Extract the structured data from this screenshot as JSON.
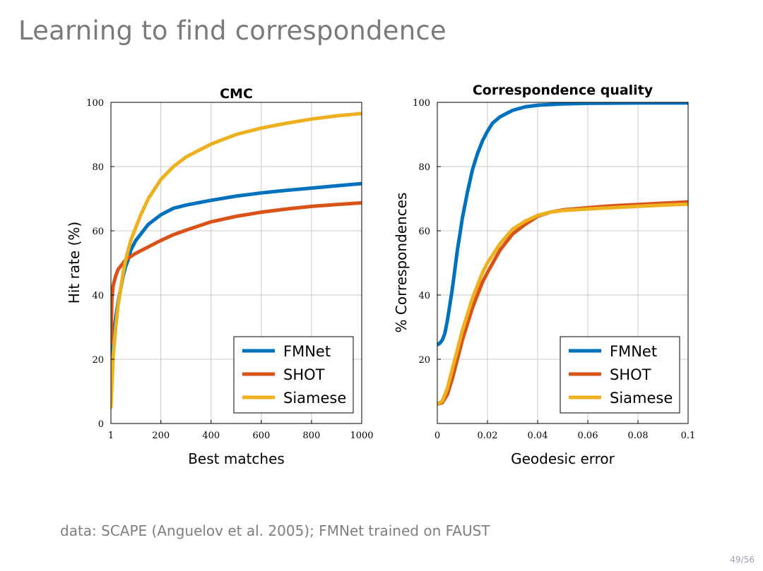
{
  "slide": {
    "title": "Learning to find correspondence",
    "footnote": "data: SCAPE (Anguelov et al. 2005); FMNet trained on FAUST",
    "page_number": "49/56"
  },
  "colors": {
    "FMNet": "#0072bd",
    "SHOT": "#d95319",
    "Siamese": "#edb120",
    "grid": "#c8c8c8",
    "slide_title": "#7a7a7a"
  },
  "chart_data": [
    {
      "type": "line",
      "title": "CMC",
      "xlabel": "Best matches",
      "ylabel": "Hit rate (%)",
      "xlim": [
        1,
        1000
      ],
      "ylim": [
        0,
        100
      ],
      "xticks": [
        1,
        200,
        400,
        600,
        800,
        1000
      ],
      "xtick_labels": [
        "1",
        "200",
        "400",
        "600",
        "800",
        "1000"
      ],
      "yticks": [
        0,
        20,
        40,
        60,
        80,
        100
      ],
      "ytick_labels": [
        "0",
        "20",
        "40",
        "60",
        "80",
        "100"
      ],
      "grid": true,
      "legend_position": "bottom-right",
      "series": [
        {
          "name": "FMNet",
          "x": [
            1,
            10,
            20,
            30,
            40,
            50,
            60,
            70,
            80,
            100,
            120,
            150,
            200,
            250,
            300,
            400,
            500,
            600,
            700,
            800,
            900,
            1000
          ],
          "y": [
            19,
            27,
            33,
            38,
            42,
            46,
            49,
            51,
            54,
            57,
            59,
            62,
            65,
            67,
            68,
            69.5,
            70.8,
            71.8,
            72.6,
            73.3,
            74.0,
            74.7
          ]
        },
        {
          "name": "SHOT",
          "x": [
            1,
            5,
            10,
            20,
            30,
            40,
            50,
            60,
            80,
            100,
            150,
            200,
            250,
            300,
            400,
            500,
            600,
            700,
            800,
            900,
            1000
          ],
          "y": [
            25,
            39,
            43,
            46,
            48,
            49,
            50,
            51,
            52,
            53,
            55,
            57,
            58.8,
            60.2,
            62.8,
            64.5,
            65.8,
            66.8,
            67.6,
            68.2,
            68.7
          ]
        },
        {
          "name": "Siamese",
          "x": [
            1,
            10,
            20,
            30,
            40,
            50,
            60,
            70,
            80,
            100,
            120,
            150,
            200,
            250,
            300,
            400,
            500,
            600,
            700,
            800,
            900,
            1000
          ],
          "y": [
            5,
            21,
            30,
            37,
            42,
            47,
            51,
            54,
            57,
            61,
            65,
            70,
            76,
            80,
            83,
            87,
            90,
            92,
            93.5,
            94.8,
            95.8,
            96.5
          ]
        }
      ]
    },
    {
      "type": "line",
      "title": "Correspondence quality",
      "xlabel": "Geodesic error",
      "ylabel": "% Correspondences",
      "xlim": [
        0,
        0.1
      ],
      "ylim": [
        0,
        100
      ],
      "xticks": [
        0,
        0.02,
        0.04,
        0.06,
        0.08,
        0.1
      ],
      "xtick_labels": [
        "0",
        "0.02",
        "0.04",
        "0.06",
        "0.08",
        "0.1"
      ],
      "yticks": [
        20,
        40,
        60,
        80,
        100
      ],
      "ytick_labels": [
        "20",
        "40",
        "60",
        "80",
        "100"
      ],
      "grid": true,
      "legend_position": "bottom-right",
      "series": [
        {
          "name": "FMNet",
          "x": [
            0,
            0.001,
            0.002,
            0.003,
            0.004,
            0.005,
            0.006,
            0.007,
            0.008,
            0.009,
            0.01,
            0.012,
            0.014,
            0.016,
            0.018,
            0.02,
            0.022,
            0.025,
            0.03,
            0.035,
            0.04,
            0.05,
            0.06,
            0.08,
            0.1
          ],
          "y": [
            24.5,
            25,
            26,
            28,
            32,
            37,
            42,
            48,
            54,
            59,
            64,
            72,
            79,
            84,
            88,
            91,
            93.5,
            95.5,
            97.5,
            98.6,
            99.1,
            99.5,
            99.7,
            99.8,
            99.8
          ]
        },
        {
          "name": "SHOT",
          "x": [
            0,
            0.002,
            0.004,
            0.006,
            0.008,
            0.01,
            0.012,
            0.014,
            0.016,
            0.018,
            0.02,
            0.025,
            0.03,
            0.035,
            0.04,
            0.045,
            0.05,
            0.06,
            0.07,
            0.08,
            0.09,
            0.1
          ],
          "y": [
            6,
            6.5,
            9,
            14,
            20,
            26,
            31,
            36,
            40,
            44,
            47,
            54,
            59,
            62,
            64.5,
            65.8,
            66.5,
            67.2,
            67.8,
            68.2,
            68.6,
            69
          ]
        },
        {
          "name": "Siamese",
          "x": [
            0,
            0.002,
            0.004,
            0.006,
            0.008,
            0.01,
            0.012,
            0.014,
            0.016,
            0.018,
            0.02,
            0.025,
            0.03,
            0.035,
            0.04,
            0.045,
            0.05,
            0.06,
            0.07,
            0.08,
            0.09,
            0.1
          ],
          "y": [
            6,
            7,
            11,
            17,
            23,
            29,
            34,
            39,
            43,
            47,
            50,
            56,
            60.5,
            63,
            64.8,
            65.8,
            66.3,
            66.8,
            67.2,
            67.6,
            68,
            68.3
          ]
        }
      ]
    }
  ]
}
